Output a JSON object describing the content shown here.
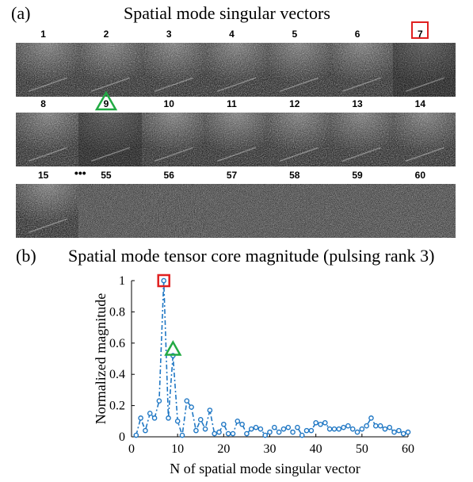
{
  "panel_a": {
    "label": "(a)",
    "title": "Spatial mode singular vectors",
    "rows": [
      {
        "tiles": [
          {
            "label": "1",
            "texture": "dark"
          },
          {
            "label": "2",
            "texture": "dark"
          },
          {
            "label": "3",
            "texture": "dark"
          },
          {
            "label": "4",
            "texture": "dark"
          },
          {
            "label": "5",
            "texture": "dark"
          },
          {
            "label": "6",
            "texture": "dark"
          },
          {
            "label": "7",
            "texture": "darkest",
            "marker": "red-square"
          }
        ]
      },
      {
        "tiles": [
          {
            "label": "8",
            "texture": "dark"
          },
          {
            "label": "9",
            "texture": "darkest",
            "marker": "green-triangle"
          },
          {
            "label": "10",
            "texture": "mid"
          },
          {
            "label": "11",
            "texture": "mid"
          },
          {
            "label": "12",
            "texture": "dark"
          },
          {
            "label": "13",
            "texture": "dark"
          },
          {
            "label": "14",
            "texture": "dark"
          }
        ]
      },
      {
        "tiles": [
          {
            "label": "15",
            "texture": "dark"
          },
          {
            "label": "55",
            "texture": "light"
          },
          {
            "label": "56",
            "texture": "light"
          },
          {
            "label": "57",
            "texture": "light"
          },
          {
            "label": "58",
            "texture": "light"
          },
          {
            "label": "59",
            "texture": "light"
          },
          {
            "label": "60",
            "texture": "light"
          }
        ],
        "ellipsis": "•••"
      }
    ]
  },
  "panel_b": {
    "label": "(b)",
    "title": "Spatial mode tensor core magnitude (pulsing rank 3)"
  },
  "colors": {
    "series": "#1f77c4",
    "red_marker": "#e02020",
    "green_marker": "#22aa44"
  },
  "chart_data": {
    "type": "line",
    "title": "Spatial mode tensor core magnitude (pulsing rank 3)",
    "xlabel": "N of spatial mode singular vector",
    "ylabel": "Normalized magnitude",
    "xlim": [
      0,
      60
    ],
    "ylim": [
      0,
      1
    ],
    "xticks": [
      0,
      10,
      20,
      30,
      40,
      50,
      60
    ],
    "yticks": [
      0,
      0.2,
      0.4,
      0.6,
      0.8,
      1
    ],
    "ytick_labels": [
      "0",
      "0.2",
      "0.4",
      "0.6",
      "0.8",
      "1"
    ],
    "grid": false,
    "line_style": "dash-dot",
    "marker_style": "open-circle",
    "highlight": [
      {
        "x": 7,
        "marker": "red-square"
      },
      {
        "x": 9,
        "marker": "green-triangle"
      }
    ],
    "x": [
      1,
      2,
      3,
      4,
      5,
      6,
      7,
      8,
      9,
      10,
      11,
      12,
      13,
      14,
      15,
      16,
      17,
      18,
      19,
      20,
      21,
      22,
      23,
      24,
      25,
      26,
      27,
      28,
      29,
      30,
      31,
      32,
      33,
      34,
      35,
      36,
      37,
      38,
      39,
      40,
      41,
      42,
      43,
      44,
      45,
      46,
      47,
      48,
      49,
      50,
      51,
      52,
      53,
      54,
      55,
      56,
      57,
      58,
      59,
      60
    ],
    "values": [
      0.01,
      0.12,
      0.04,
      0.15,
      0.12,
      0.23,
      1.0,
      0.12,
      0.52,
      0.1,
      0.01,
      0.23,
      0.19,
      0.04,
      0.11,
      0.05,
      0.17,
      0.02,
      0.03,
      0.08,
      0.02,
      0.02,
      0.1,
      0.08,
      0.02,
      0.05,
      0.06,
      0.05,
      0.01,
      0.03,
      0.06,
      0.03,
      0.05,
      0.06,
      0.03,
      0.06,
      0.01,
      0.04,
      0.04,
      0.09,
      0.08,
      0.09,
      0.05,
      0.05,
      0.05,
      0.06,
      0.07,
      0.05,
      0.03,
      0.05,
      0.07,
      0.12,
      0.07,
      0.07,
      0.05,
      0.06,
      0.03,
      0.04,
      0.02,
      0.03
    ]
  }
}
